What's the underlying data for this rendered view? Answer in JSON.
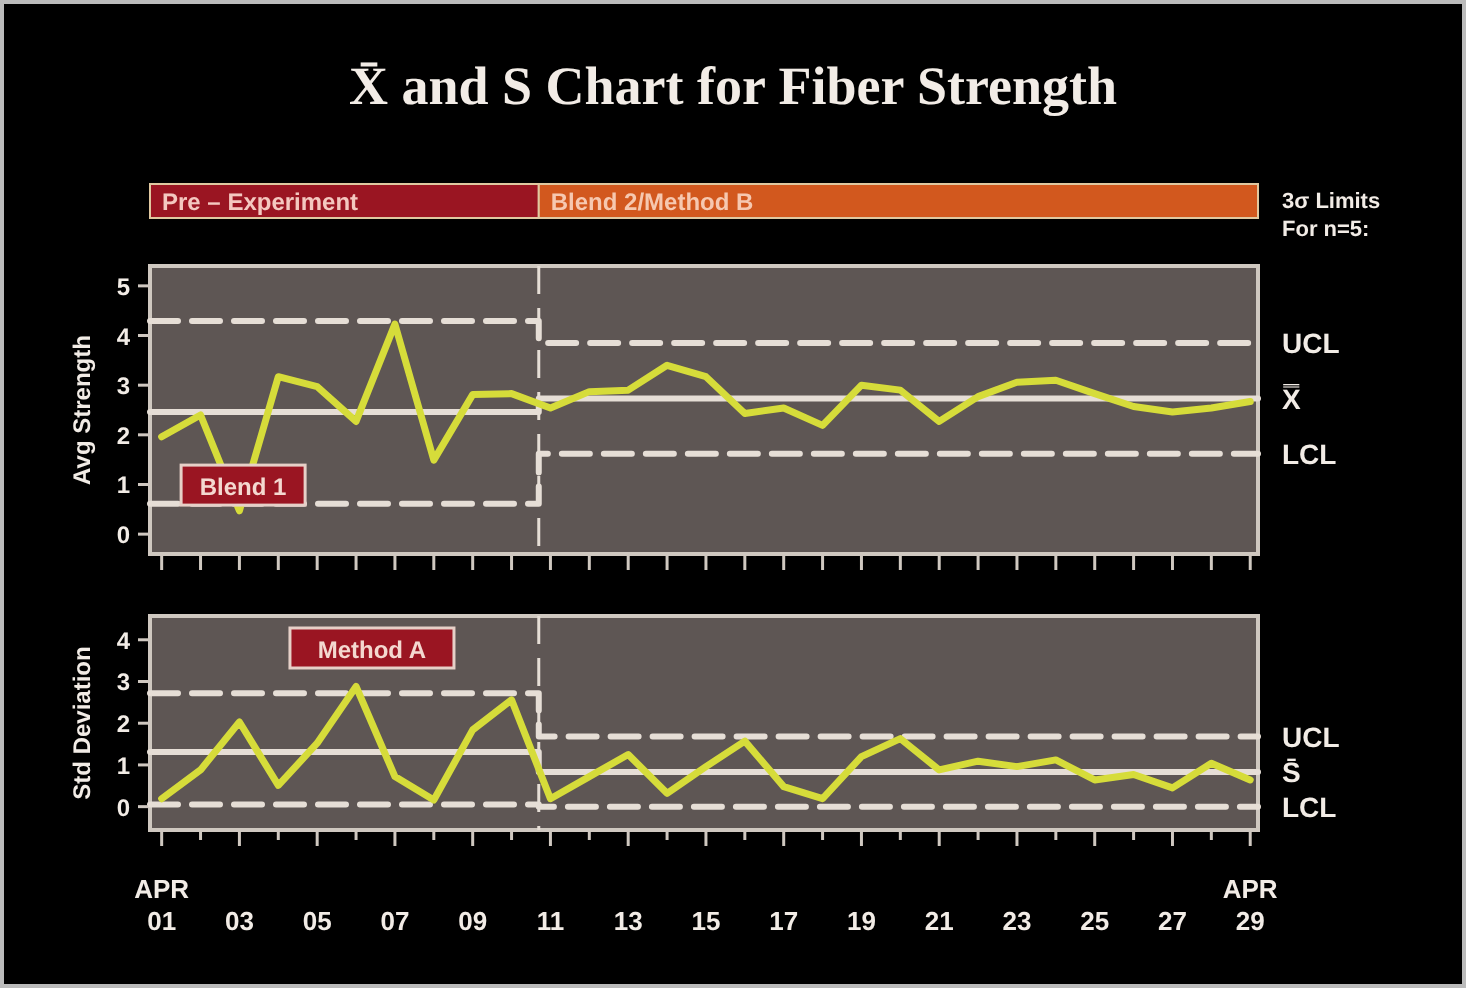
{
  "chart_data": [
    {
      "type": "line",
      "title": "X̄ and S Chart for Fiber Strength",
      "ylabel": "Avg Strength",
      "annotations": [
        "Pre – Experiment",
        "Blend 2/Method B",
        "3σ Limits For n=5:",
        "Blend 1"
      ],
      "xlim": [
        0.7,
        29.2
      ],
      "ylim": [
        -0.4,
        5.4
      ],
      "yticks": [
        0,
        1,
        2,
        3,
        4,
        5
      ],
      "xticks": [
        {
          "value": 1,
          "label": null
        },
        {
          "value": 2,
          "label": null
        },
        {
          "value": 3,
          "label": null
        },
        {
          "value": 4,
          "label": null
        },
        {
          "value": 5,
          "label": null
        },
        {
          "value": 6,
          "label": null
        },
        {
          "value": 7,
          "label": null
        },
        {
          "value": 8,
          "label": null
        },
        {
          "value": 9,
          "label": null
        },
        {
          "value": 10,
          "label": null
        },
        {
          "value": 11,
          "label": null
        },
        {
          "value": 12,
          "label": null
        },
        {
          "value": 13,
          "label": null
        },
        {
          "value": 14,
          "label": null
        },
        {
          "value": 15,
          "label": null
        },
        {
          "value": 16,
          "label": null
        },
        {
          "value": 17,
          "label": null
        },
        {
          "value": 18,
          "label": null
        },
        {
          "value": 19,
          "label": null
        },
        {
          "value": 20,
          "label": null
        },
        {
          "value": 21,
          "label": null
        },
        {
          "value": 22,
          "label": null
        },
        {
          "value": 23,
          "label": null
        },
        {
          "value": 24,
          "label": null
        },
        {
          "value": 25,
          "label": null
        },
        {
          "value": 26,
          "label": null
        },
        {
          "value": 27,
          "label": null
        },
        {
          "value": 28,
          "label": null
        },
        {
          "value": 29,
          "label": null
        }
      ],
      "tick_labels": "y",
      "x": [
        1,
        2,
        3,
        4,
        5,
        6,
        7,
        8,
        9,
        10,
        11,
        12,
        13,
        14,
        15,
        16,
        17,
        18,
        19,
        20,
        21,
        22,
        23,
        24,
        25,
        26,
        27,
        28,
        29
      ],
      "series": [
        {
          "color": "#d6dc3a",
          "line_style": "solid",
          "values": [
            1.96,
            2.4,
            0.47,
            3.17,
            2.97,
            2.27,
            4.23,
            1.49,
            2.81,
            2.83,
            2.54,
            2.87,
            2.9,
            3.4,
            3.17,
            2.43,
            2.54,
            2.19,
            3.0,
            2.9,
            2.27,
            2.77,
            3.06,
            3.1,
            2.83,
            2.57,
            2.46,
            2.54,
            2.67
          ]
        },
        {
          "name": "UCL",
          "color": "#e6ded6",
          "line_style": "dashed",
          "x": [
            0.7,
            10.7,
            10.7,
            29.2
          ],
          "values": [
            4.29,
            4.29,
            3.85,
            3.85
          ]
        },
        {
          "name": "X̿",
          "color": "#e6ded6",
          "line_style": "solid",
          "x": [
            0.7,
            10.7,
            10.7,
            29.2
          ],
          "values": [
            2.46,
            2.46,
            2.73,
            2.73
          ]
        },
        {
          "name": "LCL",
          "color": "#e6ded6",
          "line_style": "dashed",
          "x": [
            0.7,
            10.7,
            10.7,
            29.2
          ],
          "values": [
            0.61,
            0.61,
            1.62,
            1.62
          ]
        }
      ],
      "ref_lines": [
        {
          "axis": "x",
          "value": 10.7,
          "line_style": "dashed",
          "color": "#e6ded6"
        }
      ],
      "grid": false
    },
    {
      "type": "line",
      "ylabel": "Std Deviation",
      "annotations": [
        "Method A"
      ],
      "xlim": [
        0.7,
        29.2
      ],
      "ylim": [
        -0.56,
        4.57
      ],
      "yticks": [
        0,
        1,
        2,
        3,
        4
      ],
      "xticks": [
        {
          "value": 1,
          "label": "APR\n01"
        },
        {
          "value": 2,
          "label": null
        },
        {
          "value": 3,
          "label": "03"
        },
        {
          "value": 4,
          "label": null
        },
        {
          "value": 5,
          "label": "05"
        },
        {
          "value": 6,
          "label": null
        },
        {
          "value": 7,
          "label": "07"
        },
        {
          "value": 8,
          "label": null
        },
        {
          "value": 9,
          "label": "09"
        },
        {
          "value": 10,
          "label": null
        },
        {
          "value": 11,
          "label": "11"
        },
        {
          "value": 12,
          "label": null
        },
        {
          "value": 13,
          "label": "13"
        },
        {
          "value": 14,
          "label": null
        },
        {
          "value": 15,
          "label": "15"
        },
        {
          "value": 16,
          "label": null
        },
        {
          "value": 17,
          "label": "17"
        },
        {
          "value": 18,
          "label": null
        },
        {
          "value": 19,
          "label": "19"
        },
        {
          "value": 20,
          "label": null
        },
        {
          "value": 21,
          "label": "21"
        },
        {
          "value": 22,
          "label": null
        },
        {
          "value": 23,
          "label": "23"
        },
        {
          "value": 24,
          "label": null
        },
        {
          "value": 25,
          "label": "25"
        },
        {
          "value": 26,
          "label": null
        },
        {
          "value": 27,
          "label": "27"
        },
        {
          "value": 28,
          "label": null
        },
        {
          "value": 29,
          "label": "APR\n29"
        }
      ],
      "x": [
        1,
        2,
        3,
        4,
        5,
        6,
        7,
        8,
        9,
        10,
        11,
        12,
        13,
        14,
        15,
        16,
        17,
        18,
        19,
        20,
        21,
        22,
        23,
        24,
        25,
        26,
        27,
        28,
        29
      ],
      "series": [
        {
          "color": "#d6dc3a",
          "line_style": "solid",
          "values": [
            0.19,
            0.88,
            2.03,
            0.51,
            1.52,
            2.88,
            0.72,
            0.16,
            1.84,
            2.56,
            0.19,
            0.72,
            1.25,
            0.32,
            0.96,
            1.57,
            0.48,
            0.19,
            1.2,
            1.63,
            0.88,
            1.09,
            0.96,
            1.12,
            0.64,
            0.77,
            0.45,
            1.04,
            0.64
          ]
        },
        {
          "name": "UCL",
          "color": "#e6ded6",
          "line_style": "dashed",
          "x": [
            0.7,
            10.7,
            10.7,
            29.2
          ],
          "values": [
            2.72,
            2.72,
            1.68,
            1.68
          ]
        },
        {
          "name": "S̄",
          "color": "#e6ded6",
          "line_style": "solid",
          "x": [
            0.7,
            10.7,
            10.7,
            29.2
          ],
          "values": [
            1.31,
            1.31,
            0.83,
            0.83
          ]
        },
        {
          "name": "LCL",
          "color": "#e6ded6",
          "line_style": "dashed",
          "x": [
            0.7,
            10.7,
            10.7,
            29.2
          ],
          "values": [
            0.05,
            0.05,
            0,
            0
          ]
        }
      ],
      "ref_lines": [
        {
          "axis": "x",
          "value": 10.7,
          "line_style": "dashed",
          "color": "#e6ded6"
        }
      ],
      "grid": false
    }
  ]
}
